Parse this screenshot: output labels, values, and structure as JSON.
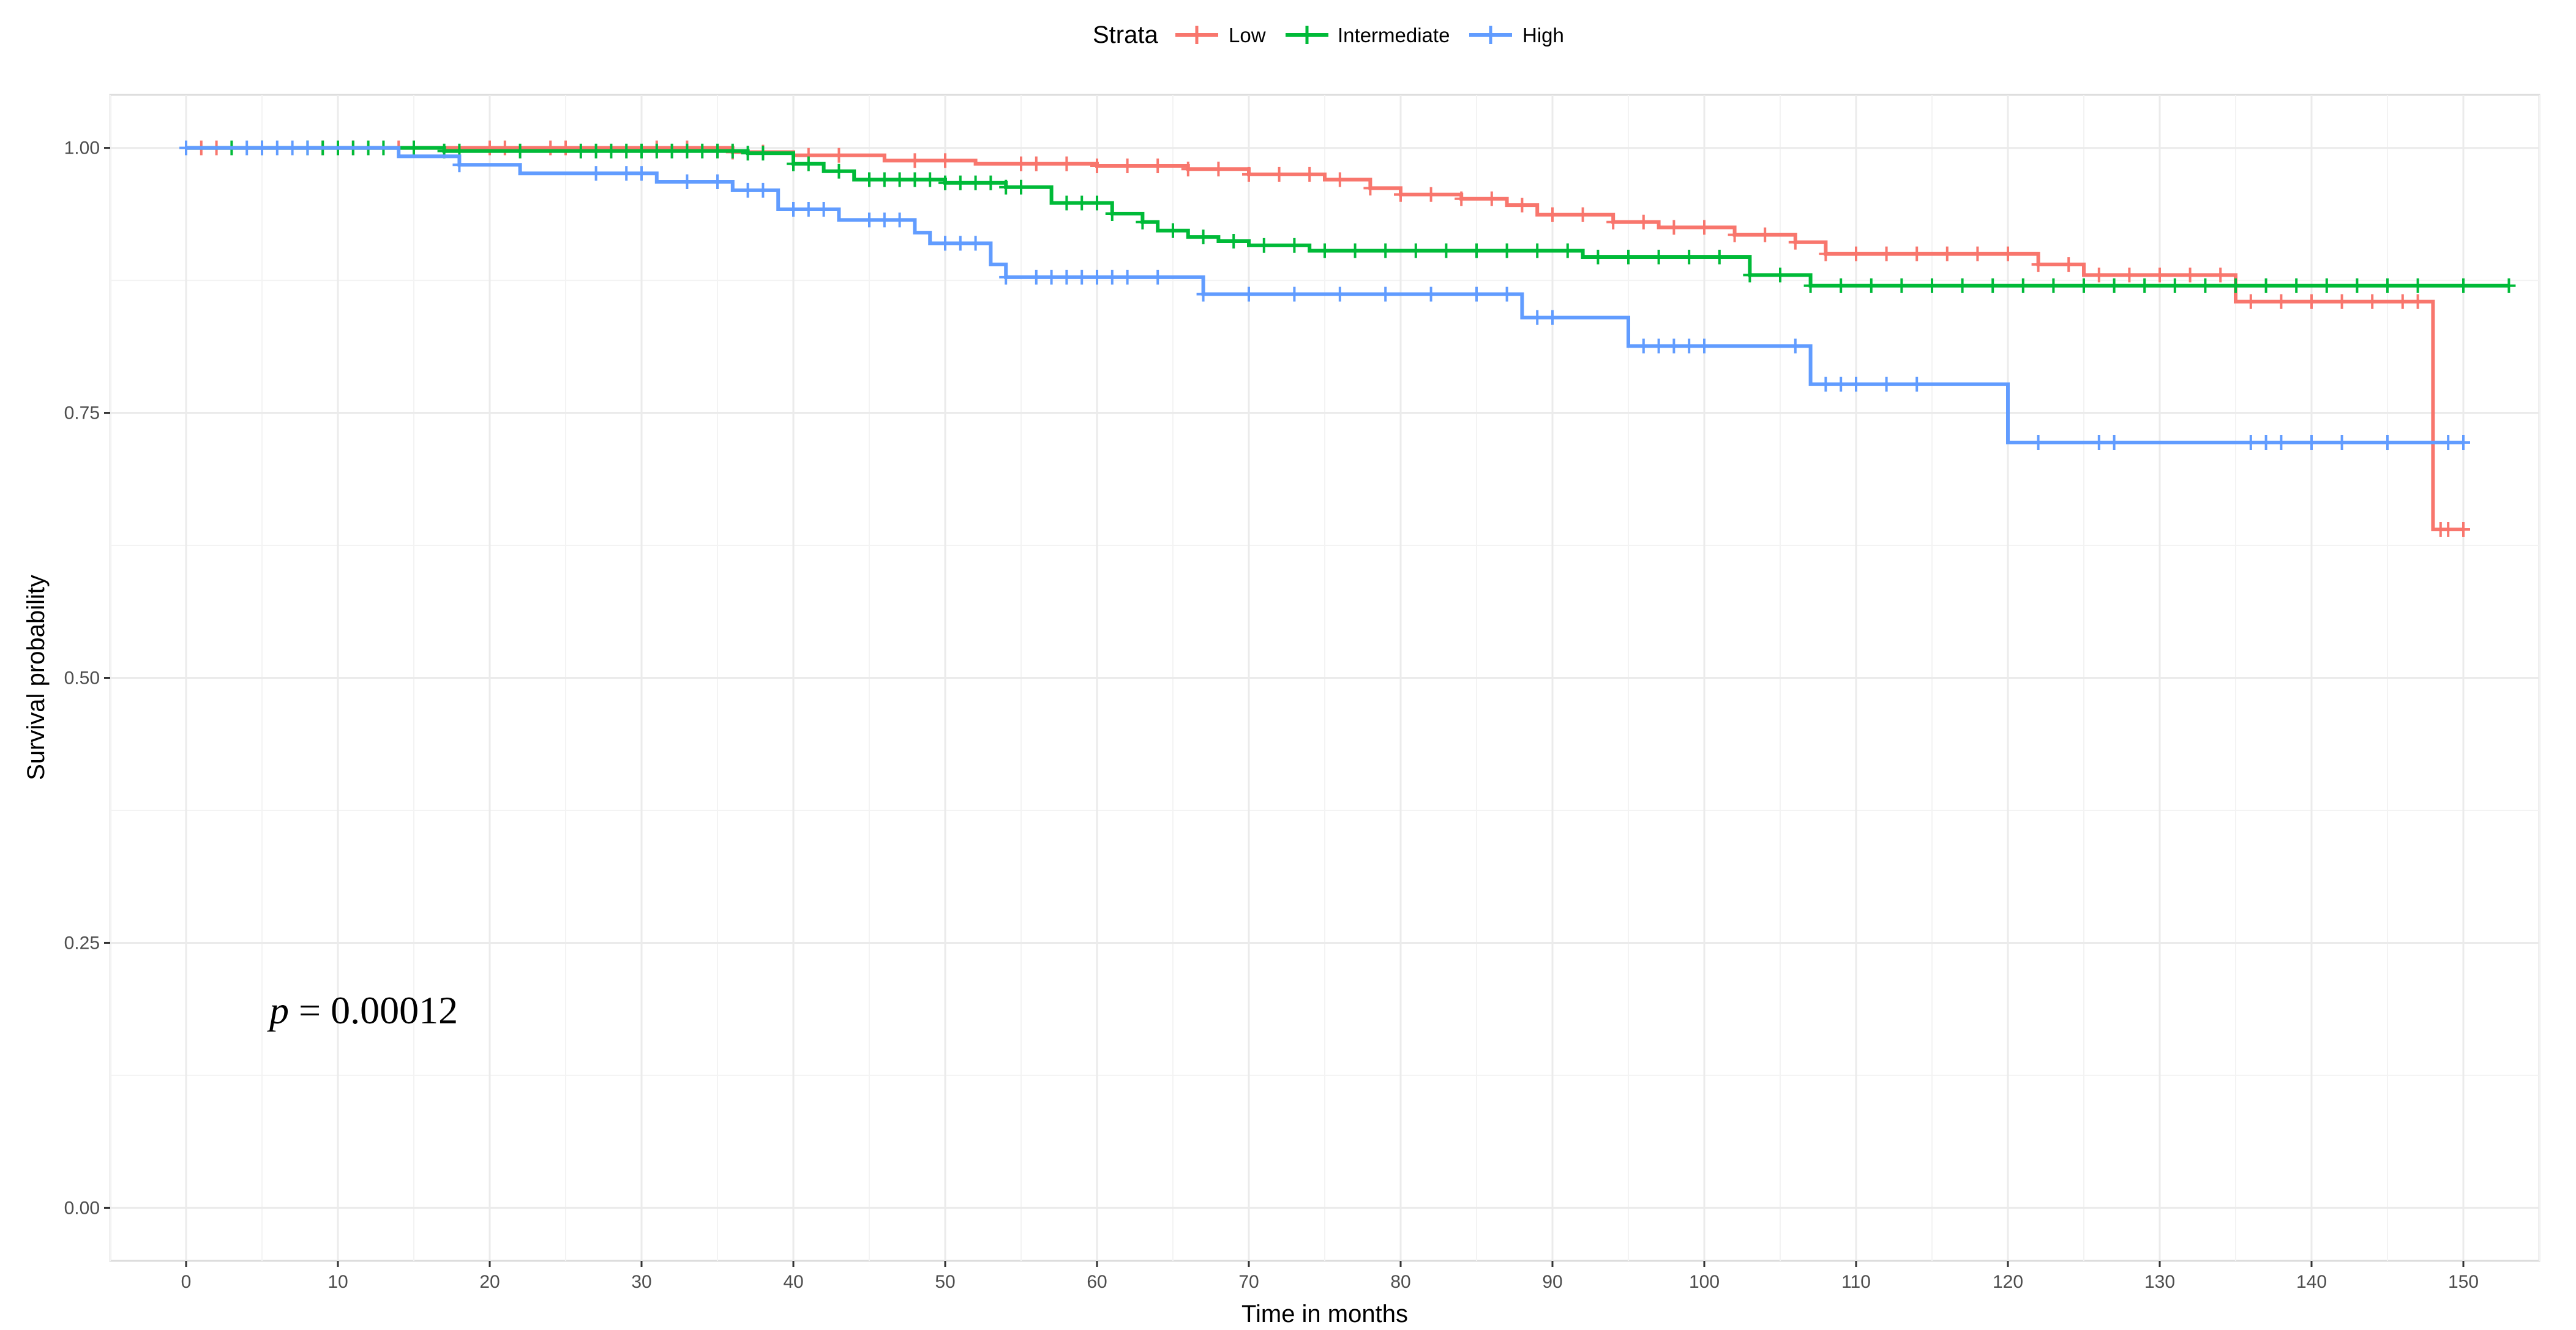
{
  "chart_data": {
    "type": "line",
    "subtype": "kaplan-meier",
    "xlabel": "Time in months",
    "ylabel": "Survival probability",
    "xlim": [
      -5,
      155
    ],
    "ylim": [
      -0.05,
      1.05
    ],
    "x_ticks": [
      0,
      10,
      20,
      30,
      40,
      50,
      60,
      70,
      80,
      90,
      100,
      110,
      120,
      130,
      140,
      150
    ],
    "x_tick_labels": [
      "0",
      "10",
      "20",
      "30",
      "40",
      "50",
      "60",
      "70",
      "80",
      "90",
      "100",
      "110",
      "120",
      "130",
      "140",
      "150"
    ],
    "y_ticks": [
      0,
      0.25,
      0.5,
      0.75,
      1
    ],
    "y_tick_labels": [
      "0.00",
      "0.25",
      "0.50",
      "0.75",
      "1.00"
    ],
    "grid": true,
    "legend": {
      "title": "Strata",
      "placement": "top",
      "entries": [
        "Low",
        "Intermediate",
        "High"
      ]
    },
    "annotation": {
      "p_symbol": "p",
      "p_text": " = 0.00012",
      "x": 3.5,
      "y": 0.185
    },
    "series": [
      {
        "name": "Low",
        "color": "#F8766D",
        "steps": [
          [
            0,
            1.0
          ],
          [
            36,
            0.996
          ],
          [
            40,
            0.993
          ],
          [
            46,
            0.988
          ],
          [
            52,
            0.985
          ],
          [
            60,
            0.983
          ],
          [
            66,
            0.98
          ],
          [
            70,
            0.975
          ],
          [
            75,
            0.97
          ],
          [
            78,
            0.962
          ],
          [
            80,
            0.956
          ],
          [
            84,
            0.952
          ],
          [
            87,
            0.946
          ],
          [
            89,
            0.937
          ],
          [
            94,
            0.93
          ],
          [
            97,
            0.925
          ],
          [
            102,
            0.918
          ],
          [
            106,
            0.911
          ],
          [
            108,
            0.9
          ],
          [
            122,
            0.89
          ],
          [
            125,
            0.88
          ],
          [
            135,
            0.855
          ],
          [
            148,
            0.64
          ],
          [
            150,
            0.64
          ]
        ],
        "censors": [
          1,
          2,
          9,
          11,
          14,
          20,
          21,
          24,
          25,
          31,
          33,
          36,
          38,
          41,
          43,
          48,
          50,
          55,
          56,
          58,
          60,
          62,
          64,
          66,
          68,
          70,
          72,
          74,
          76,
          78,
          80,
          82,
          84,
          86,
          88,
          90,
          92,
          94,
          96,
          98,
          100,
          102,
          104,
          106,
          108,
          110,
          112,
          114,
          116,
          118,
          120,
          122,
          124,
          126,
          128,
          130,
          132,
          134,
          136,
          138,
          140,
          142,
          144,
          146,
          147,
          148.5,
          149,
          150
        ]
      },
      {
        "name": "Intermediate",
        "color": "#00BA38",
        "steps": [
          [
            0,
            1.0
          ],
          [
            17,
            0.997
          ],
          [
            37,
            0.995
          ],
          [
            40,
            0.985
          ],
          [
            42,
            0.978
          ],
          [
            44,
            0.97
          ],
          [
            50,
            0.967
          ],
          [
            54,
            0.963
          ],
          [
            57,
            0.948
          ],
          [
            61,
            0.938
          ],
          [
            63,
            0.93
          ],
          [
            64,
            0.922
          ],
          [
            66,
            0.916
          ],
          [
            68,
            0.912
          ],
          [
            70,
            0.908
          ],
          [
            74,
            0.903
          ],
          [
            92,
            0.897
          ],
          [
            103,
            0.88
          ],
          [
            107,
            0.87
          ],
          [
            153,
            0.87
          ]
        ],
        "censors": [
          3,
          5,
          8,
          9,
          10,
          11,
          12,
          13,
          15,
          17,
          18,
          22,
          26,
          27,
          28,
          29,
          30,
          31,
          32,
          33,
          34,
          35,
          36,
          37,
          38,
          40,
          41,
          43,
          45,
          46,
          47,
          48,
          49,
          50,
          51,
          52,
          53,
          54,
          55,
          58,
          59,
          60,
          61,
          63,
          65,
          67,
          69,
          71,
          73,
          75,
          77,
          79,
          81,
          83,
          85,
          87,
          89,
          91,
          93,
          95,
          97,
          99,
          101,
          103,
          105,
          107,
          109,
          111,
          113,
          115,
          117,
          119,
          121,
          123,
          125,
          127,
          129,
          131,
          133,
          135,
          137,
          139,
          141,
          143,
          145,
          147,
          150,
          153
        ]
      },
      {
        "name": "High",
        "color": "#619CFF",
        "steps": [
          [
            0,
            1.0
          ],
          [
            14,
            0.992
          ],
          [
            18,
            0.984
          ],
          [
            22,
            0.976
          ],
          [
            31,
            0.968
          ],
          [
            36,
            0.96
          ],
          [
            39,
            0.942
          ],
          [
            43,
            0.932
          ],
          [
            48,
            0.92
          ],
          [
            49,
            0.91
          ],
          [
            53,
            0.89
          ],
          [
            54,
            0.878
          ],
          [
            67,
            0.862
          ],
          [
            88,
            0.84
          ],
          [
            95,
            0.813
          ],
          [
            107,
            0.777
          ],
          [
            120,
            0.722
          ],
          [
            150,
            0.722
          ]
        ],
        "censors": [
          0,
          4,
          5,
          6,
          7,
          8,
          18,
          27,
          29,
          30,
          33,
          35,
          37,
          38,
          40,
          41,
          42,
          45,
          46,
          47,
          50,
          51,
          52,
          54,
          56,
          57,
          58,
          59,
          60,
          61,
          62,
          64,
          67,
          70,
          73,
          76,
          79,
          82,
          85,
          87,
          89,
          90,
          96,
          97,
          98,
          99,
          100,
          106,
          108,
          109,
          110,
          112,
          114,
          122,
          126,
          127,
          136,
          137,
          138,
          140,
          142,
          145,
          149,
          150
        ]
      }
    ]
  }
}
